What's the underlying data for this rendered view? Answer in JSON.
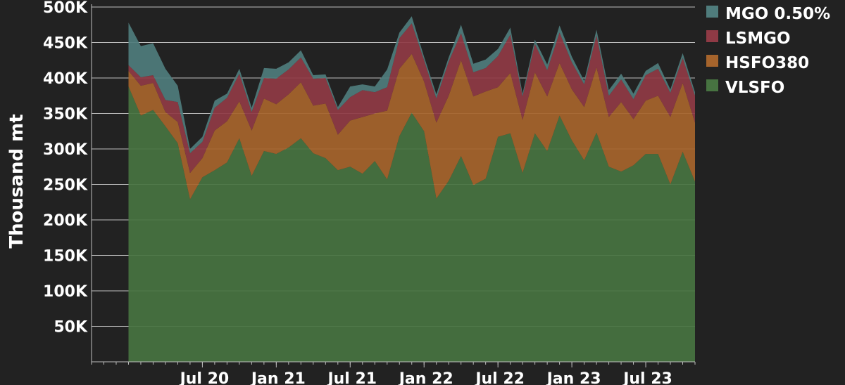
{
  "chart_data": {
    "type": "area",
    "stacked": true,
    "ylabel": "Thousand mt",
    "ylim": [
      0,
      500000
    ],
    "yticks": [
      50000,
      100000,
      150000,
      200000,
      250000,
      300000,
      350000,
      400000,
      450000,
      500000
    ],
    "ytick_labels": [
      "50K",
      "100K",
      "150K",
      "200K",
      "250K",
      "300K",
      "350K",
      "400K",
      "450K",
      "500K"
    ],
    "xlim": [
      "2019-10",
      "2023-11"
    ],
    "xticks": [
      "2020-07",
      "2021-01",
      "2021-07",
      "2022-01",
      "2022-07",
      "2023-01",
      "2023-07"
    ],
    "xtick_labels": [
      "Jul 20",
      "Jan 21",
      "Jul 21",
      "Jan 22",
      "Jul 22",
      "Jan 23",
      "Jul 23"
    ],
    "grid": "horizontal",
    "legend_position": "top-right",
    "x": [
      "2020-01",
      "2020-02",
      "2020-03",
      "2020-04",
      "2020-05",
      "2020-06",
      "2020-07",
      "2020-08",
      "2020-09",
      "2020-10",
      "2020-11",
      "2020-12",
      "2021-01",
      "2021-02",
      "2021-03",
      "2021-04",
      "2021-05",
      "2021-06",
      "2021-07",
      "2021-08",
      "2021-09",
      "2021-10",
      "2021-11",
      "2021-12",
      "2022-01",
      "2022-02",
      "2022-03",
      "2022-04",
      "2022-05",
      "2022-06",
      "2022-07",
      "2022-08",
      "2022-09",
      "2022-10",
      "2022-11",
      "2022-12",
      "2023-01",
      "2023-02",
      "2023-03",
      "2023-04",
      "2023-05",
      "2023-06",
      "2023-07",
      "2023-08",
      "2023-09",
      "2023-10",
      "2023-11"
    ],
    "series": [
      {
        "name": "VLSFO",
        "color": "#477341",
        "values": [
          388000,
          347000,
          355000,
          332000,
          308000,
          229000,
          260000,
          270000,
          281000,
          315000,
          262000,
          297000,
          293000,
          302000,
          315000,
          294000,
          287000,
          270000,
          275000,
          265000,
          283000,
          257000,
          318000,
          351000,
          325000,
          230000,
          255000,
          290000,
          249000,
          258000,
          317000,
          322000,
          266000,
          322000,
          297000,
          347000,
          312000,
          284000,
          323000,
          275000,
          268000,
          277000,
          293000,
          293000,
          250000,
          296000,
          254000
        ]
      },
      {
        "name": "HSFO380",
        "color": "#a6642c",
        "values": [
          22000,
          42000,
          38000,
          20000,
          30000,
          37000,
          27000,
          56000,
          58000,
          52000,
          64000,
          74000,
          70000,
          75000,
          79000,
          67000,
          77000,
          50000,
          65000,
          80000,
          67000,
          97000,
          95000,
          83000,
          70000,
          107000,
          120000,
          135000,
          125000,
          123000,
          70000,
          85000,
          75000,
          86000,
          77000,
          74000,
          72000,
          75000,
          92000,
          70000,
          98000,
          65000,
          75000,
          82000,
          95000,
          97000,
          83000
        ]
      },
      {
        "name": "LSMGO",
        "color": "#8f3a45",
        "values": [
          8000,
          12000,
          11000,
          17000,
          28000,
          28000,
          23000,
          32000,
          33000,
          39000,
          26000,
          29000,
          36000,
          35000,
          35000,
          38000,
          36000,
          35000,
          33000,
          38000,
          30000,
          33000,
          43000,
          43000,
          30000,
          34000,
          48000,
          38000,
          34000,
          33000,
          44000,
          54000,
          33000,
          40000,
          37000,
          43000,
          38000,
          32000,
          45000,
          30000,
          32000,
          28000,
          36000,
          38000,
          34000,
          35000,
          38000
        ]
      },
      {
        "name": "MGO 0.50%",
        "color": "#4f7c7c",
        "values": [
          60000,
          44000,
          45000,
          44000,
          23000,
          6000,
          7000,
          10000,
          6000,
          7000,
          6000,
          14000,
          14000,
          10000,
          10000,
          5000,
          5000,
          4000,
          15000,
          8000,
          8000,
          25000,
          8000,
          10000,
          5000,
          6000,
          6000,
          12000,
          12000,
          12000,
          10000,
          10000,
          4000,
          6000,
          8000,
          10000,
          8000,
          5000,
          8000,
          8000,
          8000,
          8000,
          6000,
          8000,
          5000,
          7000,
          5000
        ]
      }
    ]
  }
}
